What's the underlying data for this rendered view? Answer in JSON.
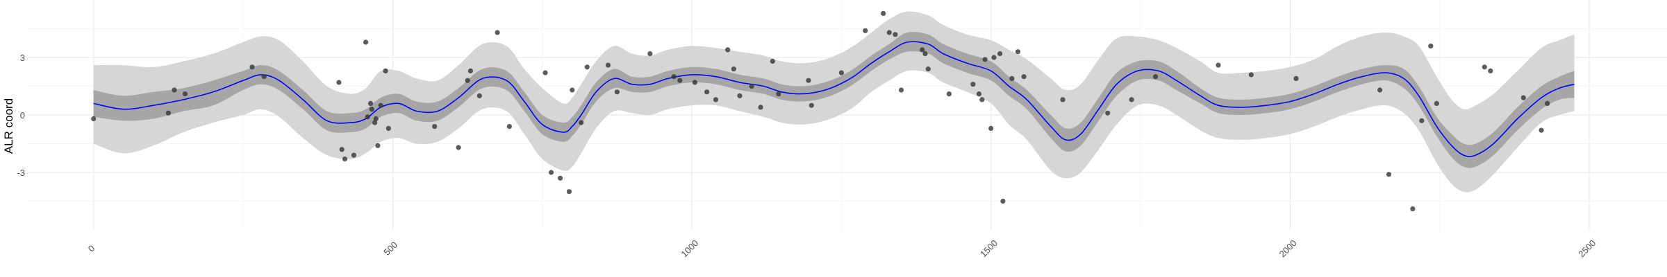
{
  "chart_data": {
    "type": "scatter",
    "xlabel": "",
    "ylabel": "ALR coord",
    "xlim": [
      -110,
      2630
    ],
    "ylim": [
      -6.0,
      6.0
    ],
    "x_ticks": [
      0,
      500,
      1000,
      1500,
      2000,
      2500
    ],
    "x_tick_labels": [
      "0",
      "500",
      "1000",
      "1500",
      "2000",
      "2500"
    ],
    "y_ticks": [
      -3,
      0,
      3
    ],
    "y_tick_labels": [
      "-3",
      "0",
      "3"
    ],
    "grid": true,
    "legend": "none",
    "colors": {
      "line": "#0000ff",
      "inner_band": "#a6a6a6",
      "outer_band": "#d6d6d6",
      "points": "#333333",
      "grid_major": "#ebebeb",
      "grid_minor": "#f5f5f5"
    },
    "series": [
      {
        "kind": "line",
        "x": [
          0,
          50,
          100,
          150,
          200,
          250,
          280,
          310,
          350,
          390,
          430,
          455,
          480,
          510,
          540,
          575,
          610,
          650,
          690,
          720,
          750,
          785,
          800,
          815,
          840,
          870,
          900,
          930,
          960,
          1000,
          1040,
          1080,
          1120,
          1150,
          1180,
          1210,
          1240,
          1270,
          1300,
          1330,
          1360,
          1395,
          1420,
          1460,
          1500,
          1530,
          1560,
          1600,
          1625,
          1650,
          1680,
          1710,
          1745,
          1780,
          1810,
          1850,
          1880,
          1920,
          1960,
          2000,
          2040,
          2080,
          2120,
          2160,
          2190,
          2215,
          2245,
          2270,
          2290,
          2310,
          2340,
          2380,
          2420,
          2450,
          2475
        ],
        "y": [
          0.6,
          0.3,
          0.5,
          0.8,
          1.2,
          1.8,
          2.1,
          1.8,
          0.8,
          -0.3,
          -0.4,
          -0.2,
          0.4,
          0.6,
          0.2,
          0.2,
          0.9,
          1.9,
          1.8,
          0.7,
          -0.5,
          -0.9,
          -0.6,
          0.0,
          1.2,
          1.9,
          1.6,
          1.6,
          1.9,
          2.1,
          2.0,
          1.7,
          1.5,
          1.2,
          1.1,
          1.2,
          1.5,
          2.0,
          2.7,
          3.3,
          3.8,
          3.7,
          3.2,
          2.7,
          2.3,
          1.5,
          0.8,
          -0.6,
          -1.3,
          -1.0,
          0.3,
          1.6,
          2.3,
          2.3,
          1.8,
          1.0,
          0.5,
          0.4,
          0.5,
          0.7,
          1.1,
          1.6,
          2.0,
          2.2,
          1.9,
          1.0,
          -0.6,
          -1.6,
          -2.1,
          -2.1,
          -1.5,
          -0.2,
          0.9,
          1.4,
          1.6
        ]
      },
      {
        "kind": "band_inner",
        "x": [
          0,
          50,
          100,
          150,
          200,
          250,
          280,
          310,
          350,
          390,
          430,
          455,
          480,
          510,
          540,
          575,
          610,
          650,
          690,
          720,
          750,
          785,
          800,
          815,
          840,
          870,
          900,
          930,
          960,
          1000,
          1040,
          1080,
          1120,
          1150,
          1180,
          1210,
          1240,
          1270,
          1300,
          1330,
          1360,
          1395,
          1420,
          1460,
          1500,
          1530,
          1560,
          1600,
          1625,
          1650,
          1680,
          1710,
          1745,
          1780,
          1810,
          1850,
          1880,
          1920,
          1960,
          2000,
          2040,
          2080,
          2120,
          2160,
          2190,
          2215,
          2245,
          2270,
          2290,
          2310,
          2340,
          2380,
          2420,
          2450,
          2475
        ],
        "lower": [
          -0.1,
          -0.3,
          -0.2,
          0.2,
          0.5,
          1.3,
          1.6,
          1.3,
          0.3,
          -0.8,
          -0.9,
          -0.7,
          -0.1,
          0.1,
          -0.3,
          -0.3,
          0.4,
          1.4,
          1.3,
          0.2,
          -1.0,
          -1.4,
          -1.1,
          -0.5,
          0.7,
          1.4,
          1.2,
          1.2,
          1.5,
          1.7,
          1.6,
          1.3,
          1.1,
          0.8,
          0.7,
          0.8,
          1.1,
          1.6,
          2.3,
          2.9,
          3.3,
          3.2,
          2.7,
          2.2,
          1.8,
          1.0,
          0.3,
          -1.2,
          -1.9,
          -1.6,
          -0.3,
          1.0,
          1.8,
          1.8,
          1.3,
          0.6,
          0.1,
          0.0,
          0.1,
          0.3,
          0.7,
          1.2,
          1.6,
          1.8,
          1.4,
          0.5,
          -1.1,
          -2.2,
          -2.7,
          -2.7,
          -2.1,
          -0.8,
          0.3,
          0.8,
          0.9
        ],
        "upper": [
          1.3,
          1.0,
          1.2,
          1.4,
          1.8,
          2.3,
          2.6,
          2.3,
          1.3,
          0.2,
          0.1,
          0.3,
          0.9,
          1.1,
          0.7,
          0.7,
          1.4,
          2.4,
          2.3,
          1.2,
          0.0,
          -0.4,
          -0.1,
          0.5,
          1.7,
          2.4,
          2.0,
          2.0,
          2.3,
          2.5,
          2.4,
          2.1,
          1.9,
          1.6,
          1.5,
          1.6,
          1.9,
          2.4,
          3.1,
          3.7,
          4.3,
          4.2,
          3.7,
          3.2,
          2.8,
          2.0,
          1.3,
          0.0,
          -0.7,
          -0.4,
          0.9,
          2.2,
          2.8,
          2.8,
          2.3,
          1.4,
          0.9,
          0.8,
          0.9,
          1.1,
          1.5,
          2.0,
          2.4,
          2.6,
          2.4,
          1.5,
          -0.1,
          -1.0,
          -1.5,
          -1.5,
          -0.9,
          0.4,
          1.5,
          2.0,
          2.3
        ]
      },
      {
        "kind": "band_outer",
        "x": [
          0,
          50,
          100,
          150,
          200,
          250,
          280,
          310,
          350,
          390,
          430,
          455,
          480,
          510,
          540,
          575,
          610,
          650,
          690,
          720,
          750,
          785,
          800,
          815,
          840,
          870,
          900,
          930,
          960,
          1000,
          1040,
          1080,
          1120,
          1150,
          1180,
          1210,
          1240,
          1270,
          1300,
          1330,
          1360,
          1395,
          1420,
          1460,
          1500,
          1530,
          1560,
          1600,
          1625,
          1650,
          1680,
          1710,
          1745,
          1780,
          1810,
          1850,
          1880,
          1920,
          1960,
          2000,
          2040,
          2080,
          2120,
          2160,
          2190,
          2215,
          2245,
          2270,
          2290,
          2310,
          2340,
          2380,
          2420,
          2450,
          2475
        ],
        "lower": [
          -1.5,
          -2.0,
          -1.6,
          -0.9,
          -0.4,
          0.0,
          0.3,
          -0.1,
          -1.2,
          -2.1,
          -2.3,
          -2.0,
          -1.4,
          -1.2,
          -1.5,
          -1.4,
          -0.7,
          0.3,
          0.2,
          -1.0,
          -2.3,
          -2.9,
          -2.7,
          -2.0,
          -0.7,
          0.2,
          0.1,
          0.0,
          0.3,
          0.5,
          0.5,
          0.2,
          -0.1,
          -0.4,
          -0.5,
          -0.4,
          -0.1,
          0.4,
          1.2,
          1.8,
          2.3,
          2.2,
          1.7,
          1.2,
          0.6,
          -0.5,
          -1.3,
          -2.9,
          -3.3,
          -3.0,
          -1.8,
          -0.5,
          0.5,
          0.5,
          0.0,
          -0.8,
          -1.2,
          -1.3,
          -1.2,
          -1.0,
          -0.6,
          -0.1,
          0.3,
          0.5,
          0.1,
          -0.8,
          -2.5,
          -3.6,
          -4.0,
          -3.9,
          -3.1,
          -1.7,
          -0.4,
          0.0,
          0.2
        ],
        "upper": [
          2.6,
          2.6,
          2.5,
          2.8,
          3.2,
          3.8,
          4.1,
          3.9,
          2.8,
          1.5,
          1.1,
          1.4,
          2.3,
          2.3,
          1.9,
          1.8,
          2.6,
          3.7,
          3.6,
          2.4,
          1.4,
          0.6,
          0.9,
          1.6,
          2.8,
          3.6,
          3.2,
          3.1,
          3.4,
          3.6,
          3.5,
          3.3,
          3.1,
          2.8,
          2.7,
          2.8,
          3.1,
          3.6,
          4.3,
          5.0,
          5.4,
          5.2,
          4.7,
          4.2,
          3.9,
          3.4,
          2.9,
          1.9,
          1.3,
          1.6,
          2.9,
          4.0,
          4.1,
          3.9,
          3.5,
          2.8,
          2.2,
          2.2,
          2.3,
          2.5,
          2.9,
          3.6,
          4.1,
          4.3,
          4.1,
          3.6,
          2.0,
          0.8,
          0.3,
          0.5,
          1.1,
          2.3,
          3.5,
          3.9,
          4.2
        ]
      },
      {
        "kind": "points",
        "x": [
          0,
          125,
          135,
          153,
          265,
          285,
          410,
          415,
          420,
          435,
          455,
          458,
          463,
          465,
          470,
          472,
          475,
          480,
          488,
          493,
          570,
          610,
          625,
          630,
          645,
          675,
          695,
          755,
          765,
          780,
          795,
          800,
          815,
          825,
          860,
          875,
          930,
          970,
          980,
          1005,
          1025,
          1040,
          1060,
          1070,
          1080,
          1100,
          1115,
          1135,
          1145,
          1195,
          1200,
          1250,
          1290,
          1320,
          1330,
          1340,
          1350,
          1385,
          1390,
          1395,
          1430,
          1470,
          1480,
          1485,
          1490,
          1500,
          1505,
          1515,
          1520,
          1535,
          1545,
          1555,
          1620,
          1695,
          1735,
          1775,
          1880,
          1935,
          2010,
          2150,
          2165,
          2205,
          2220,
          2235,
          2245,
          2325,
          2335,
          2390,
          2420,
          2430
        ],
        "y": [
          -0.2,
          0.1,
          1.3,
          1.1,
          2.5,
          2.0,
          1.7,
          -1.8,
          -2.3,
          -2.1,
          3.8,
          -0.1,
          0.6,
          0.3,
          -0.4,
          -0.2,
          -1.6,
          0.5,
          2.3,
          -0.7,
          -0.6,
          -1.7,
          1.8,
          2.3,
          1.0,
          4.3,
          -0.6,
          2.2,
          -3.0,
          -3.3,
          -4.0,
          1.3,
          -0.4,
          2.5,
          2.6,
          1.2,
          3.2,
          2.0,
          1.8,
          1.7,
          1.2,
          0.8,
          3.4,
          2.4,
          1.0,
          1.5,
          0.4,
          2.8,
          1.1,
          1.8,
          0.5,
          2.2,
          4.4,
          5.3,
          4.3,
          4.2,
          1.3,
          3.4,
          3.2,
          2.4,
          1.1,
          1.6,
          1.1,
          0.8,
          2.9,
          -0.7,
          3.0,
          3.2,
          -4.5,
          1.9,
          3.3,
          2.0,
          0.8,
          0.1,
          0.8,
          2.0,
          2.6,
          2.1,
          1.9,
          1.3,
          -3.1,
          -4.9,
          -0.3,
          3.6,
          0.6,
          2.5,
          2.3,
          0.9,
          -0.8,
          0.6
        ]
      }
    ]
  }
}
